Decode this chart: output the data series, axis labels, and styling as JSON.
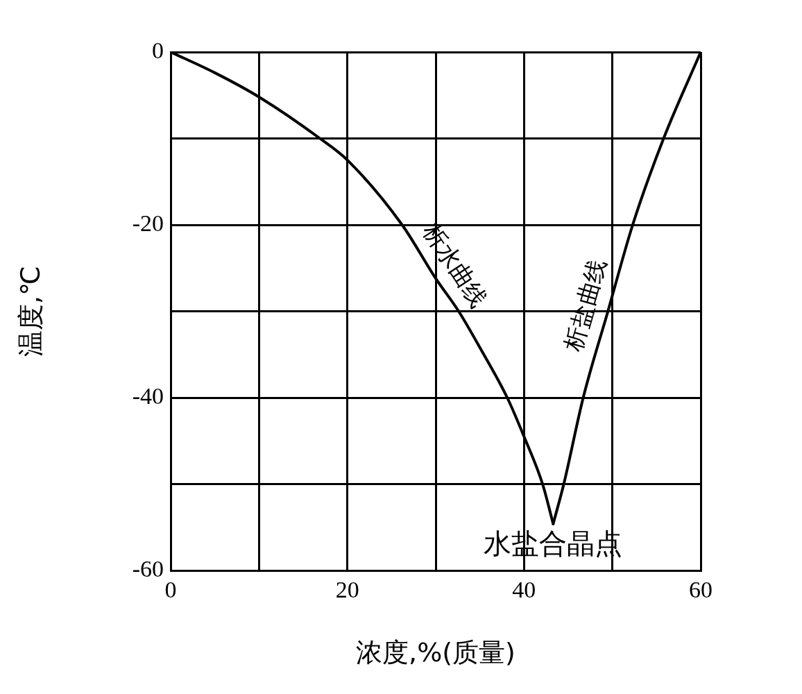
{
  "chart_data": {
    "type": "line",
    "xlabel": "浓度,%(质量)",
    "ylabel": "温度,℃",
    "xlim": [
      0,
      60
    ],
    "ylim": [
      -60,
      0
    ],
    "xticks": [
      0,
      {
        "value": 10,
        "label": null
      },
      20,
      {
        "value": 30,
        "label": null
      },
      40,
      {
        "value": 50,
        "label": null
      },
      60
    ],
    "yticks": [
      -60,
      {
        "value": -50,
        "label": null
      },
      -40,
      {
        "value": -30,
        "label": null
      },
      -20,
      {
        "value": -10,
        "label": null
      },
      0
    ],
    "grid": true,
    "legend": false,
    "series": [
      {
        "name": "析水曲线",
        "color": "#000000",
        "x": [
          0,
          5,
          10,
          16.9,
          20,
          26.2,
          30,
          32.6,
          35,
          38.1,
          40,
          42.1,
          43.3
        ],
        "values": [
          0,
          -2.4,
          -5.2,
          -10,
          -12.5,
          -20,
          -26.2,
          -30,
          -34.2,
          -40,
          -44.5,
          -50,
          -54.6
        ]
      },
      {
        "name": "析盐曲线",
        "color": "#000000",
        "x": [
          43.3,
          44.5,
          46.7,
          49.5,
          52.3,
          55.8,
          60
        ],
        "values": [
          -54.6,
          -50,
          -40,
          -30,
          -20,
          -10,
          0
        ]
      }
    ],
    "annotations": [
      {
        "text": "水盐合晶点",
        "x": 43.3,
        "y": -54.6
      }
    ]
  }
}
